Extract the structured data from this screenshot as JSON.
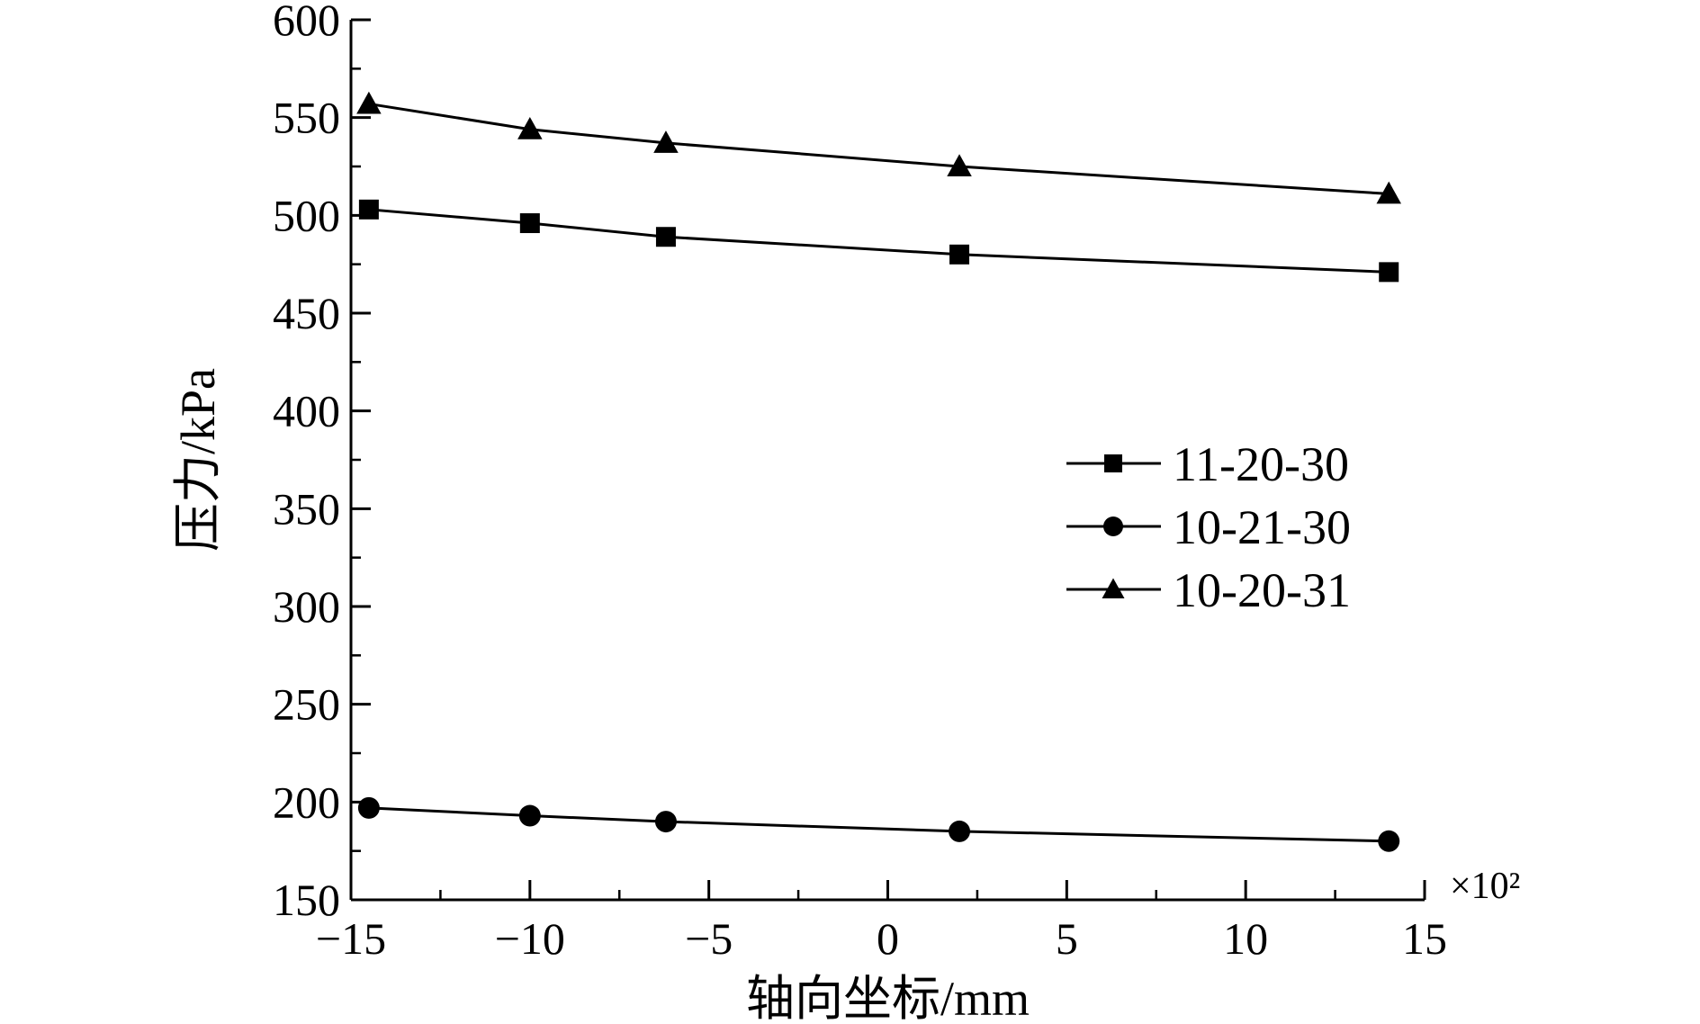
{
  "chart_data": {
    "type": "line",
    "xlabel": "轴向坐标/mm",
    "ylabel": "压力/kPa",
    "x_multiplier_label": "×10²",
    "xlim": [
      -15,
      15
    ],
    "ylim": [
      150,
      600
    ],
    "xticks": [
      -15,
      -10,
      -5,
      0,
      5,
      10,
      15
    ],
    "xtick_labels": [
      "−15",
      "−10",
      "−5",
      "0",
      "5",
      "10",
      "15"
    ],
    "yticks": [
      150,
      200,
      250,
      300,
      350,
      400,
      450,
      500,
      550,
      600
    ],
    "ytick_labels": [
      "150",
      "200",
      "250",
      "300",
      "350",
      "400",
      "450",
      "500",
      "550",
      "600"
    ],
    "grid": false,
    "legend_position": "right-middle",
    "x": [
      -14.5,
      -10,
      -6.2,
      2,
      14
    ],
    "series": [
      {
        "name": "11-20-30",
        "marker": "square",
        "values": [
          503,
          496,
          489,
          480,
          471
        ]
      },
      {
        "name": "10-21-30",
        "marker": "circle",
        "values": [
          197,
          193,
          190,
          185,
          180
        ]
      },
      {
        "name": "10-20-31",
        "marker": "triangle",
        "values": [
          557,
          544,
          537,
          525,
          511
        ]
      }
    ],
    "colors": {
      "line": "#000000",
      "marker": "#000000"
    }
  }
}
